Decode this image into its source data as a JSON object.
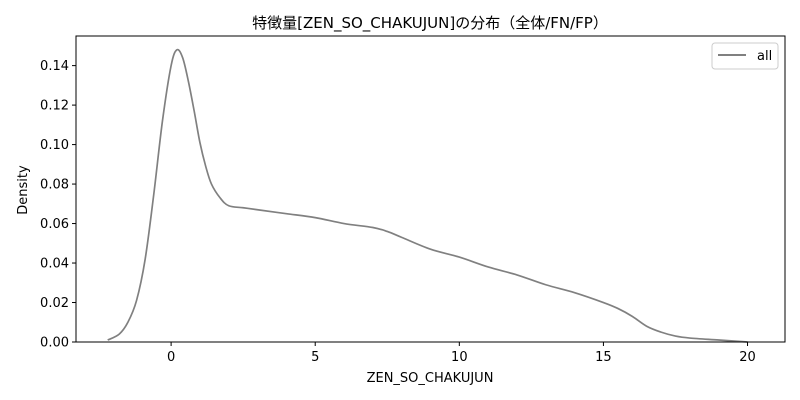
{
  "chart_data": {
    "type": "line",
    "title": "特徴量[ZEN_SO_CHAKUJUN]の分布（全体/FN/FP）",
    "xlabel": "ZEN_SO_CHAKUJUN",
    "ylabel": "Density",
    "xlim": [
      -3.3,
      21.3
    ],
    "ylim": [
      0,
      0.155
    ],
    "xticks": [
      0,
      5,
      10,
      15,
      20
    ],
    "yticks": [
      0.0,
      0.02,
      0.04,
      0.06,
      0.08,
      0.1,
      0.12,
      0.14
    ],
    "xtick_labels": [
      "0",
      "5",
      "10",
      "15",
      "20"
    ],
    "ytick_labels": [
      "0.00",
      "0.02",
      "0.04",
      "0.06",
      "0.08",
      "0.10",
      "0.12",
      "0.14"
    ],
    "grid": false,
    "legend_position": "top-right",
    "series": [
      {
        "name": "all",
        "color": "#808080",
        "x": [
          -2.2,
          -1.8,
          -1.5,
          -1.2,
          -0.9,
          -0.6,
          -0.3,
          0.0,
          0.2,
          0.4,
          0.6,
          0.8,
          1.0,
          1.2,
          1.4,
          1.7,
          2.0,
          2.5,
          3.0,
          4.0,
          5.0,
          6.0,
          7.0,
          7.5,
          8.0,
          9.0,
          10.0,
          11.0,
          12.0,
          13.0,
          14.0,
          15.0,
          15.5,
          16.0,
          16.5,
          17.0,
          17.5,
          18.0,
          19.0,
          20.0
        ],
        "y": [
          0.001,
          0.004,
          0.01,
          0.021,
          0.042,
          0.075,
          0.112,
          0.14,
          0.148,
          0.144,
          0.132,
          0.117,
          0.101,
          0.089,
          0.08,
          0.073,
          0.069,
          0.068,
          0.067,
          0.065,
          0.063,
          0.06,
          0.058,
          0.056,
          0.053,
          0.047,
          0.043,
          0.038,
          0.034,
          0.029,
          0.025,
          0.02,
          0.017,
          0.013,
          0.008,
          0.005,
          0.003,
          0.002,
          0.001,
          0.0
        ]
      }
    ]
  }
}
